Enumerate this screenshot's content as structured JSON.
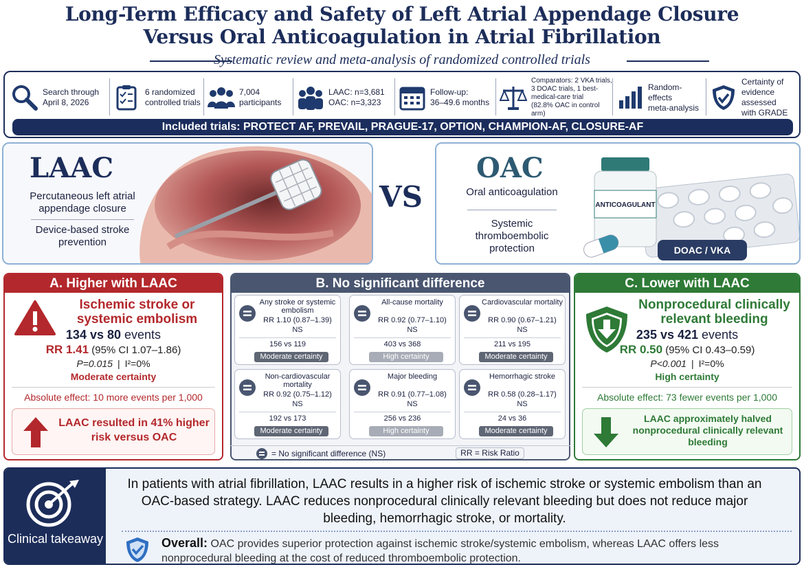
{
  "header": {
    "title_line1": "Long-Term Efficacy and Safety of Left Atrial Appendage Closure",
    "title_line2": "Versus Oral Anticoagulation in Atrial Fibrillation",
    "subtitle": "Systematic review and meta-analysis of randomized controlled trials"
  },
  "stats": [
    {
      "lines": [
        "Search through",
        "April 8, 2026"
      ]
    },
    {
      "lines": [
        "6 randomized",
        "controlled trials"
      ]
    },
    {
      "lines": [
        "7,004",
        "participants"
      ]
    },
    {
      "lines": [
        "LAAC: n=3,681",
        "OAC: n=3,323"
      ]
    },
    {
      "lines": [
        "Follow-up:",
        "36–49.6 months"
      ]
    },
    {
      "lines": [
        "Comparators: 2 VKA trials,",
        "3 DOAC trials, 1 best-",
        "medical-care trial",
        "(82.8% OAC in control arm)"
      ]
    },
    {
      "lines": [
        "Random-effects",
        "meta-analysis"
      ]
    },
    {
      "lines": [
        "Certainty of",
        "evidence assessed",
        "with GRADE"
      ]
    }
  ],
  "included": {
    "label": "Included trials:",
    "trials": "PROTECT AF, PREVAIL, PRAGUE-17, OPTION, CHAMPION-AF, CLOSURE-AF"
  },
  "comparison": {
    "laac": {
      "title": "LAAC",
      "description": "Percutaneous left atrial appendage closure",
      "purpose": "Device-based stroke prevention"
    },
    "vs": "VS",
    "oac": {
      "title": "OAC",
      "description": "Oral anticoagulation",
      "purpose": "Systemic thromboembolic protection",
      "bottle_label": "ANTICOAGULANT",
      "badge": "DOAC / VKA"
    }
  },
  "panel_a": {
    "header": "A. Higher with LAAC",
    "outcome": "Ischemic stroke or systemic embolism",
    "events": "134 vs 80",
    "events_unit": "events",
    "rr": "RR 1.41",
    "ci": "(95% CI 1.07–1.86)",
    "p": "P=0.015",
    "separator": "|",
    "i2": "I²=0%",
    "certainty": "Moderate certainty",
    "absolute": "Absolute effect: 10 more events per 1,000",
    "conclusion": "LAAC resulted in 41% higher risk versus OAC"
  },
  "panel_b": {
    "header": "B. No significant difference",
    "cells": [
      {
        "title": "Any stroke or systemic embolism",
        "rr": "RR 1.10 (0.87–1.39)",
        "significance": "NS",
        "events": "156 vs 119",
        "certainty": "Moderate certainty"
      },
      {
        "title": "All-cause mortality",
        "rr": "RR 0.92 (0.77–1.10)",
        "significance": "NS",
        "events": "403 vs 368",
        "certainty": "High certainty"
      },
      {
        "title": "Cardiovascular mortality",
        "rr": "RR 0.90 (0.67–1.21)",
        "significance": "NS",
        "events": "211 vs 195",
        "certainty": "Moderate certainty"
      },
      {
        "title": "Non-cardiovascular mortality",
        "rr": "RR 0.92 (0.75–1.12)",
        "significance": "NS",
        "events": "192 vs 173",
        "certainty": "Moderate certainty"
      },
      {
        "title": "Major bleeding",
        "rr": "RR 0.91 (0.77–1.08)",
        "significance": "NS",
        "events": "256 vs 236",
        "certainty": "High certainty"
      },
      {
        "title": "Hemorrhagic stroke",
        "rr": "RR 0.58 (0.28–1.17)",
        "significance": "NS",
        "events": "24 vs 36",
        "certainty": "Moderate certainty"
      }
    ],
    "legend_ns": "= No significant difference (NS)",
    "legend_rr": "RR = Risk Ratio"
  },
  "panel_c": {
    "header": "C. Lower with LAAC",
    "outcome": "Nonprocedural clinically relevant bleeding",
    "events": "235 vs 421",
    "events_unit": "events",
    "rr": "RR 0.50",
    "ci": "(95% CI 0.43–0.59)",
    "p": "P<0.001",
    "separator": "|",
    "i2": "I²=0%",
    "certainty": "High certainty",
    "absolute": "Absolute effect: 73 fewer events per 1,000",
    "conclusion": "LAAC approximately halved nonprocedural clinically relevant bleeding"
  },
  "takeaway": {
    "label": "Clinical takeaway",
    "text": "In patients with atrial fibrillation, LAAC results in a higher risk of ischemic stroke or systemic embolism than an OAC-based strategy. LAAC reduces nonprocedural clinically relevant bleeding but does not reduce major bleeding, hemorrhagic stroke, or mortality.",
    "overall_label": "Overall:",
    "overall_text": "OAC provides superior protection against ischemic stroke/systemic embolism, whereas LAAC offers less nonprocedural bleeding at the cost of reduced thromboembolic protection."
  }
}
